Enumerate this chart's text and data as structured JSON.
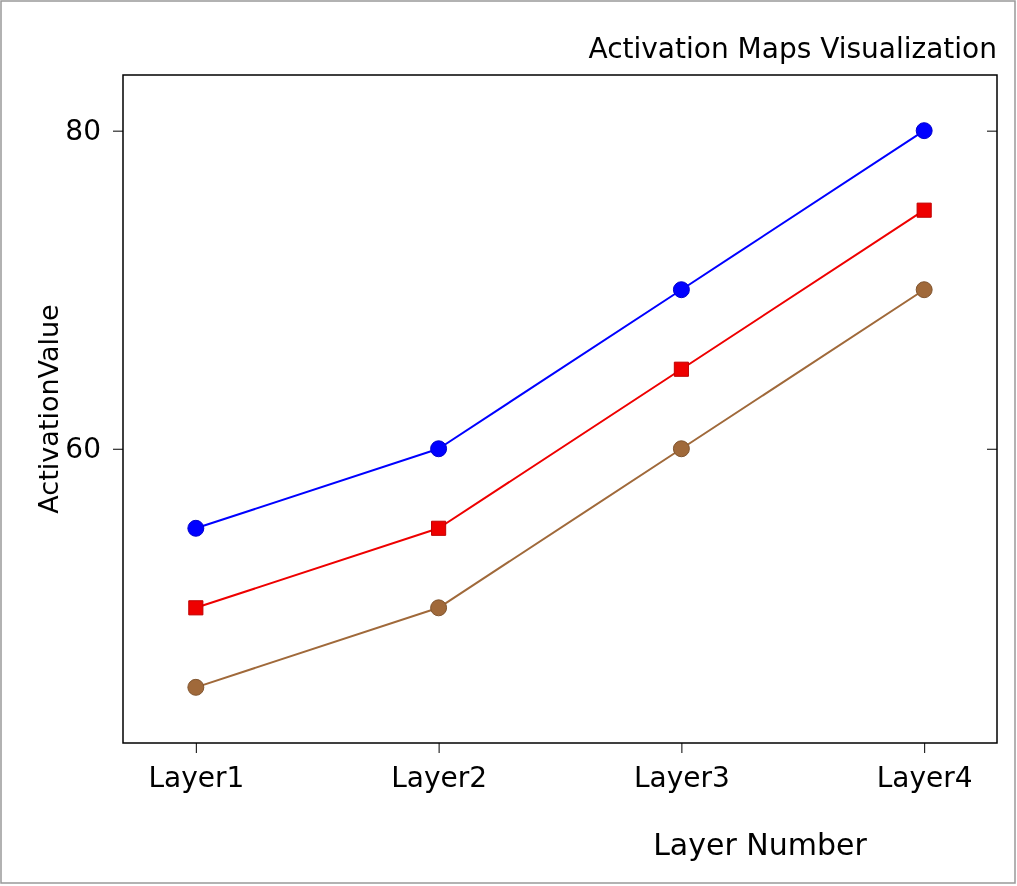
{
  "chart_data": {
    "type": "line",
    "title": "Activation Maps Visualization",
    "xlabel": "Layer Number",
    "ylabel": "ActivationValue",
    "categories": [
      "Layer1",
      "Layer2",
      "Layer3",
      "Layer4"
    ],
    "ylim": [
      41.5,
      83.5
    ],
    "yticks": [
      60,
      80
    ],
    "grid": false,
    "line_style": "solid",
    "series": [
      {
        "color": "#0000ff",
        "marker": "circle",
        "values": [
          55,
          60,
          70,
          80
        ]
      },
      {
        "color": "#ee0000",
        "marker": "square",
        "values": [
          50,
          55,
          65,
          75
        ]
      },
      {
        "color": "#a0693a",
        "marker": "circle",
        "values": [
          45,
          50,
          60,
          70
        ]
      }
    ]
  }
}
